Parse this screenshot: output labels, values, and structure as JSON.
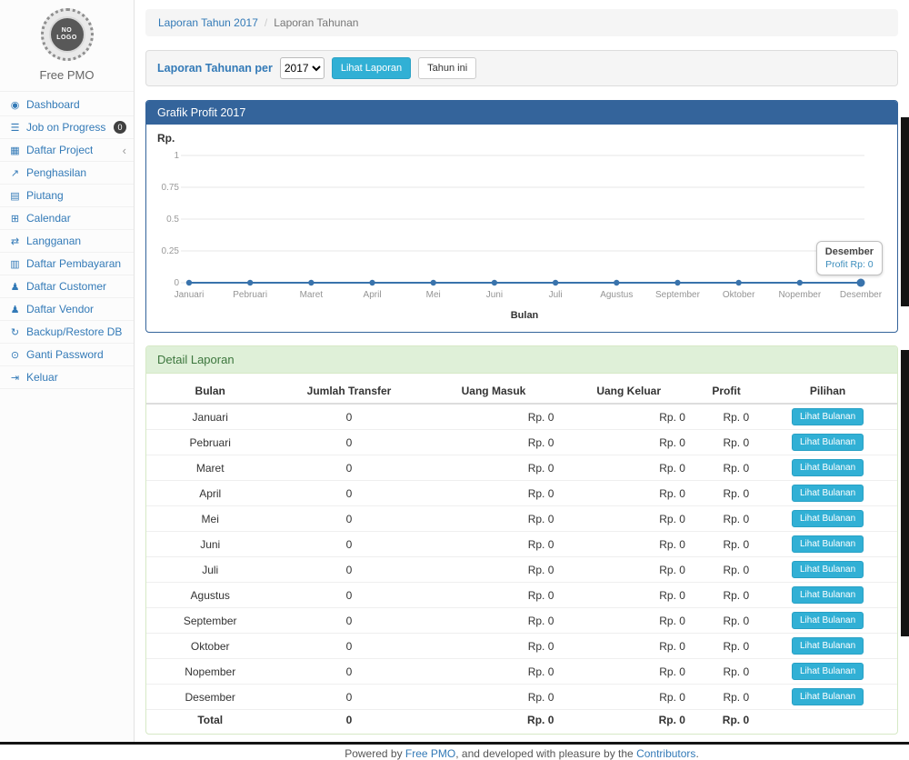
{
  "app": {
    "brand": "Free PMO",
    "logo_line1": "NO",
    "logo_line2": "LOGO"
  },
  "sidebar": {
    "items": [
      {
        "id": "dashboard",
        "label": "Dashboard",
        "icon": "dashboard-icon",
        "glyph": "◉"
      },
      {
        "id": "job-on-progress",
        "label": "Job on Progress",
        "icon": "tasks-icon",
        "glyph": "☰",
        "badge": "0"
      },
      {
        "id": "daftar-project",
        "label": "Daftar Project",
        "icon": "table-icon",
        "glyph": "▦",
        "chevron": "‹"
      },
      {
        "id": "penghasilan",
        "label": "Penghasilan",
        "icon": "chart-line-icon",
        "glyph": "↗"
      },
      {
        "id": "piutang",
        "label": "Piutang",
        "icon": "money-icon",
        "glyph": "▤"
      },
      {
        "id": "calendar",
        "label": "Calendar",
        "icon": "calendar-icon",
        "glyph": "⊞"
      },
      {
        "id": "langganan",
        "label": "Langganan",
        "icon": "repeat-icon",
        "glyph": "⇄"
      },
      {
        "id": "daftar-pembayaran",
        "label": "Daftar Pembayaran",
        "icon": "credit-card-icon",
        "glyph": "▥"
      },
      {
        "id": "daftar-customer",
        "label": "Daftar Customer",
        "icon": "users-icon",
        "glyph": "♟"
      },
      {
        "id": "daftar-vendor",
        "label": "Daftar Vendor",
        "icon": "users-icon",
        "glyph": "♟"
      },
      {
        "id": "backup-restore-db",
        "label": "Backup/Restore DB",
        "icon": "refresh-icon",
        "glyph": "↻"
      },
      {
        "id": "ganti-password",
        "label": "Ganti Password",
        "icon": "lock-icon",
        "glyph": "⊙"
      },
      {
        "id": "keluar",
        "label": "Keluar",
        "icon": "sign-out-icon",
        "glyph": "⇥"
      }
    ]
  },
  "breadcrumb": {
    "link": "Laporan Tahun 2017",
    "separator": "/",
    "current": "Laporan Tahunan"
  },
  "filter": {
    "label": "Laporan Tahunan per",
    "year": "2017",
    "view_button": "Lihat Laporan",
    "this_year_button": "Tahun ini"
  },
  "chart_data": {
    "type": "line",
    "title": "Grafik Profit 2017",
    "ylabel": "Rp.",
    "xlabel": "Bulan",
    "categories": [
      "Januari",
      "Pebruari",
      "Maret",
      "April",
      "Mei",
      "Juni",
      "Juli",
      "Agustus",
      "September",
      "Oktober",
      "Nopember",
      "Desember"
    ],
    "values": [
      0,
      0,
      0,
      0,
      0,
      0,
      0,
      0,
      0,
      0,
      0,
      0
    ],
    "yticks": [
      0,
      0.25,
      0.5,
      0.75,
      1
    ],
    "ylim": [
      0,
      1.15
    ],
    "grid": true,
    "legend": "none",
    "line_color": "#3973ac",
    "tooltip": {
      "title": "Desember",
      "value": "Profit Rp: 0"
    }
  },
  "report": {
    "title": "Detail Laporan",
    "columns": [
      "Bulan",
      "Jumlah Transfer",
      "Uang Masuk",
      "Uang Keluar",
      "Profit",
      "Pilihan"
    ],
    "action_label": "Lihat Bulanan",
    "rows": [
      {
        "bulan": "Januari",
        "jumlah_transfer": "0",
        "uang_masuk": "Rp. 0",
        "uang_keluar": "Rp. 0",
        "profit": "Rp. 0"
      },
      {
        "bulan": "Pebruari",
        "jumlah_transfer": "0",
        "uang_masuk": "Rp. 0",
        "uang_keluar": "Rp. 0",
        "profit": "Rp. 0"
      },
      {
        "bulan": "Maret",
        "jumlah_transfer": "0",
        "uang_masuk": "Rp. 0",
        "uang_keluar": "Rp. 0",
        "profit": "Rp. 0"
      },
      {
        "bulan": "April",
        "jumlah_transfer": "0",
        "uang_masuk": "Rp. 0",
        "uang_keluar": "Rp. 0",
        "profit": "Rp. 0"
      },
      {
        "bulan": "Mei",
        "jumlah_transfer": "0",
        "uang_masuk": "Rp. 0",
        "uang_keluar": "Rp. 0",
        "profit": "Rp. 0"
      },
      {
        "bulan": "Juni",
        "jumlah_transfer": "0",
        "uang_masuk": "Rp. 0",
        "uang_keluar": "Rp. 0",
        "profit": "Rp. 0"
      },
      {
        "bulan": "Juli",
        "jumlah_transfer": "0",
        "uang_masuk": "Rp. 0",
        "uang_keluar": "Rp. 0",
        "profit": "Rp. 0"
      },
      {
        "bulan": "Agustus",
        "jumlah_transfer": "0",
        "uang_masuk": "Rp. 0",
        "uang_keluar": "Rp. 0",
        "profit": "Rp. 0"
      },
      {
        "bulan": "September",
        "jumlah_transfer": "0",
        "uang_masuk": "Rp. 0",
        "uang_keluar": "Rp. 0",
        "profit": "Rp. 0"
      },
      {
        "bulan": "Oktober",
        "jumlah_transfer": "0",
        "uang_masuk": "Rp. 0",
        "uang_keluar": "Rp. 0",
        "profit": "Rp. 0"
      },
      {
        "bulan": "Nopember",
        "jumlah_transfer": "0",
        "uang_masuk": "Rp. 0",
        "uang_keluar": "Rp. 0",
        "profit": "Rp. 0"
      },
      {
        "bulan": "Desember",
        "jumlah_transfer": "0",
        "uang_masuk": "Rp. 0",
        "uang_keluar": "Rp. 0",
        "profit": "Rp. 0"
      }
    ],
    "total": {
      "bulan": "Total",
      "jumlah_transfer": "0",
      "uang_masuk": "Rp. 0",
      "uang_keluar": "Rp. 0",
      "profit": "Rp. 0"
    }
  },
  "footer": {
    "prefix": "Powered by ",
    "link1": "Free PMO",
    "middle": ", and developed with pleasure by the ",
    "link2": "Contributors",
    "suffix": "."
  },
  "colors": {
    "link": "#337ab7",
    "info_button": "#31b0d5",
    "chart_header_bg": "#34649b",
    "success_header_bg": "#dff0d8",
    "success_header_text": "#3c763d",
    "chart_line": "#3973ac"
  }
}
